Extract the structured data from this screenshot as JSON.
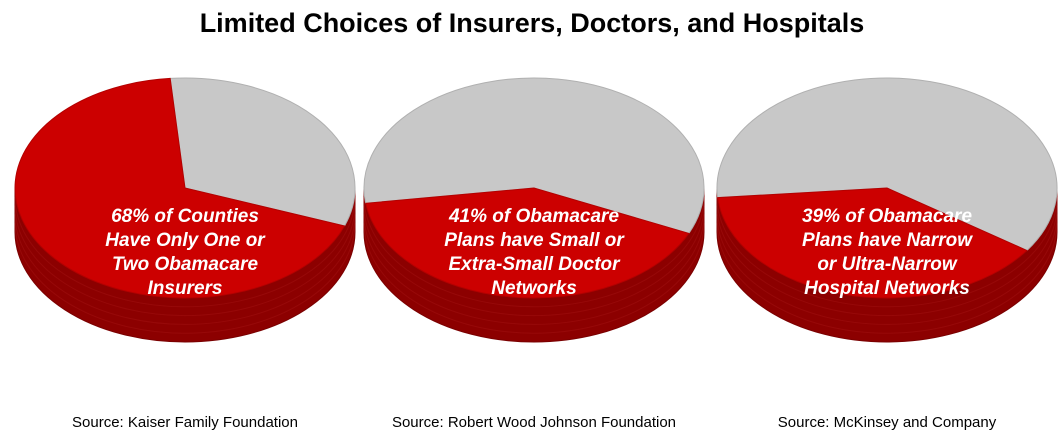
{
  "title": "Limited Choices of Insurers, Doctors, and Hospitals",
  "colors": {
    "highlight": "#cc0000",
    "highlight_side": "#8c0000",
    "remainder": "#c8c8c8",
    "remainder_side": "#9a9a9a"
  },
  "chart_data": [
    {
      "type": "pie",
      "label_lines": [
        "68% of Counties",
        "Have Only One or",
        "Two Obamacare",
        "Insurers"
      ],
      "source": "Source: Kaiser Family Foundation",
      "slices": [
        {
          "value": 68,
          "color": "#cc0000"
        },
        {
          "value": 32,
          "color": "#c8c8c8"
        }
      ]
    },
    {
      "type": "pie",
      "label_lines": [
        "41% of Obamacare",
        "Plans have Small or",
        "Extra-Small Doctor",
        "Networks"
      ],
      "source": "Source: Robert Wood Johnson Foundation",
      "slices": [
        {
          "value": 41,
          "color": "#cc0000"
        },
        {
          "value": 59,
          "color": "#c8c8c8"
        }
      ]
    },
    {
      "type": "pie",
      "label_lines": [
        "39% of Obamacare",
        "Plans have Narrow",
        "or Ultra-Narrow",
        "Hospital Networks"
      ],
      "source": "Source: McKinsey and Company",
      "slices": [
        {
          "value": 39,
          "color": "#cc0000"
        },
        {
          "value": 61,
          "color": "#c8c8c8"
        }
      ]
    }
  ]
}
